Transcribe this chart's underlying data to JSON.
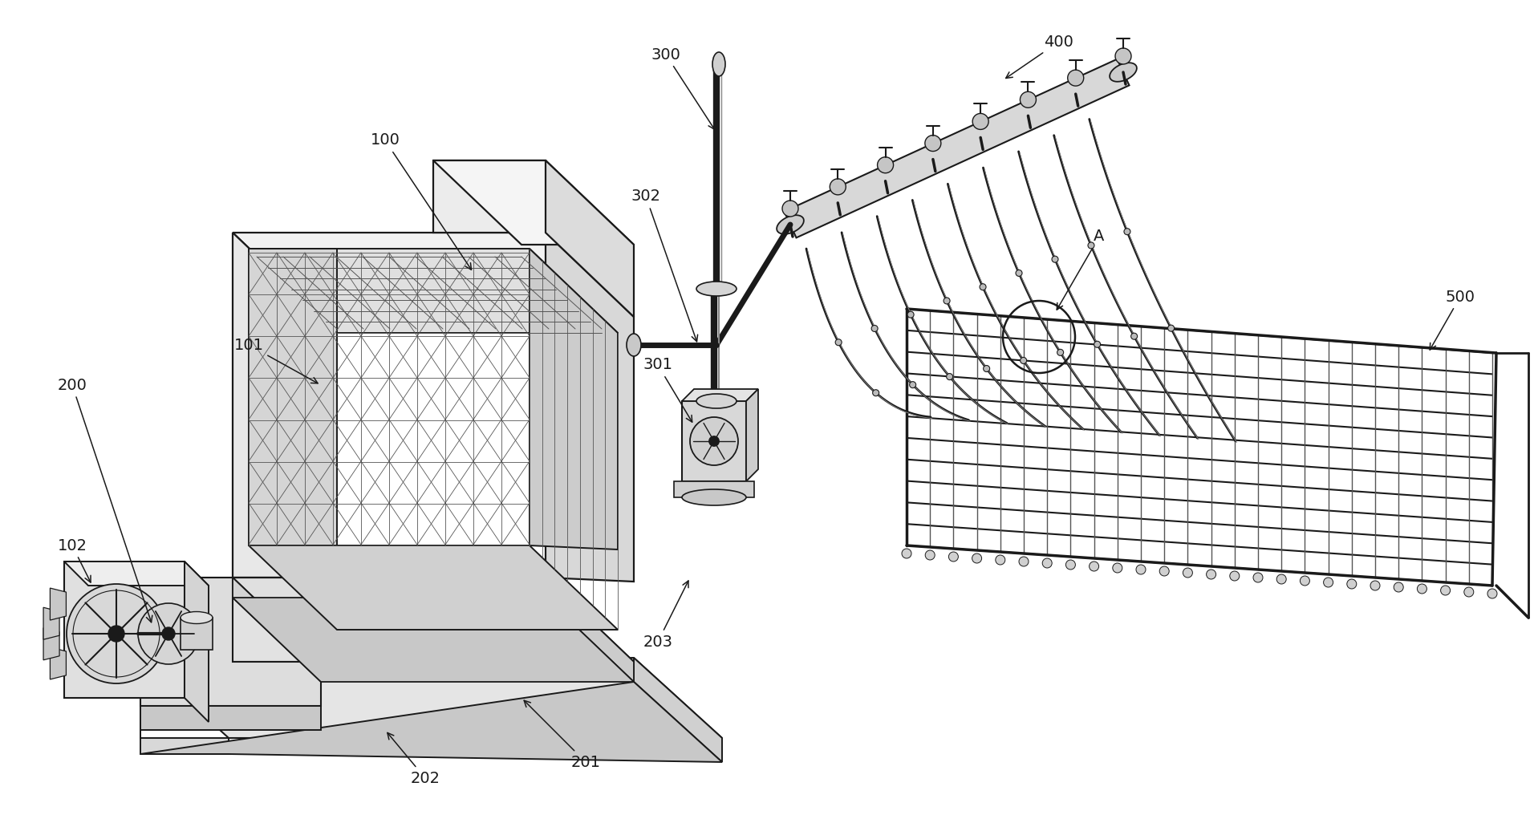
{
  "bg_color": "#ffffff",
  "dk": "#1a1a1a",
  "gr": "#555555",
  "lg": "#888888",
  "figsize": [
    19.12,
    10.16
  ],
  "dpi": 100,
  "label_fontsize": 14
}
